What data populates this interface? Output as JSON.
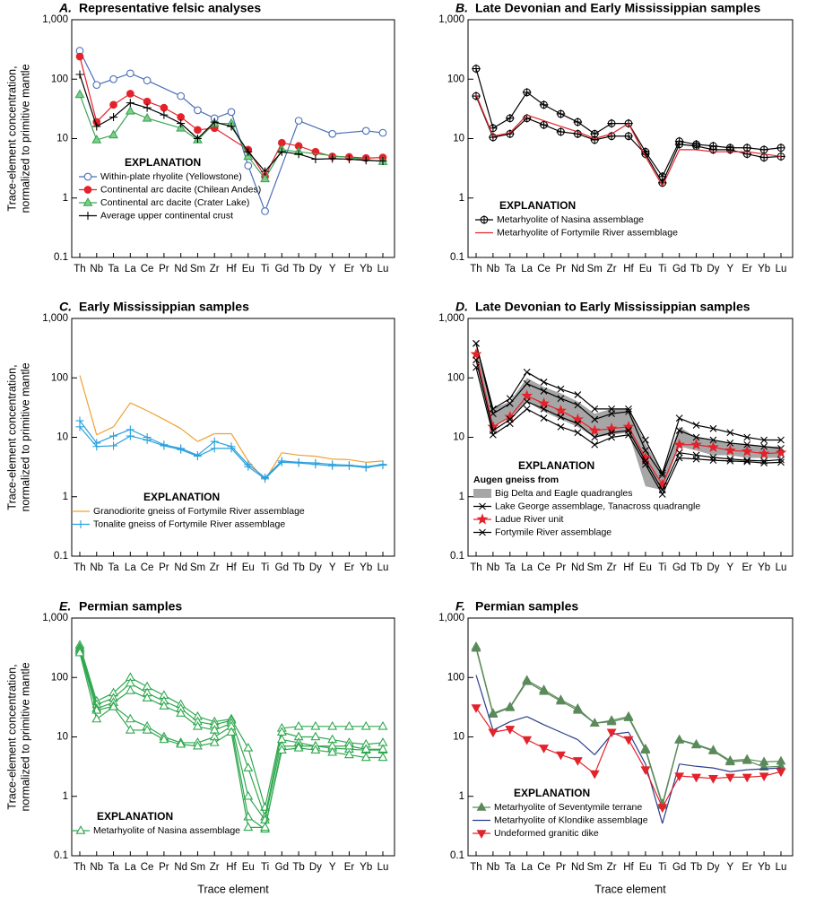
{
  "chart_data": [
    {
      "type": "line",
      "label": "A.",
      "title": "Representative felsic analyses",
      "categories": [
        "Th",
        "Nb",
        "Ta",
        "La",
        "Ce",
        "Pr",
        "Nd",
        "Sm",
        "Zr",
        "Hf",
        "Eu",
        "Ti",
        "Gd",
        "Tb",
        "Dy",
        "Y",
        "Er",
        "Yb",
        "Lu"
      ],
      "ylim": [
        0.1,
        1000
      ],
      "yticks": [
        0.1,
        1,
        10,
        100,
        {
          "value": 1000,
          "label": "1,000"
        }
      ],
      "log_scale": true,
      "y_label": [
        "Trace-element concentration,",
        "normalized to primitive mantle"
      ],
      "legend_title": "EXPLANATION",
      "series": [
        {
          "name": "Within-plate rhyolite (Yellowstone)",
          "color": "#4a6fb8",
          "marker": "circle",
          "marker_fill": "#ffffff",
          "values": [
            300,
            80,
            100,
            125,
            95,
            null,
            52,
            30,
            22,
            28,
            3.5,
            0.6,
            null,
            20,
            null,
            12,
            null,
            13.5,
            12.5
          ]
        },
        {
          "name": "Continental arc dacite (Chilean Andes)",
          "color": "#e3222b",
          "marker": "circle",
          "marker_fill": "#e3222b",
          "values": [
            240,
            19,
            37,
            57,
            42,
            33,
            23,
            14,
            15,
            null,
            6.5,
            2.3,
            8.5,
            7.5,
            6,
            5,
            4.9,
            4.7,
            4.8
          ]
        },
        {
          "name": "Continental arc dacite (Crater Lake)",
          "color": "#3aa655",
          "marker": "triangle",
          "marker_fill": "#7fcf8c",
          "values": [
            55,
            9.5,
            11.5,
            29,
            22,
            null,
            15,
            9.5,
            18,
            18,
            5,
            2.1,
            6.5,
            6,
            null,
            null,
            null,
            null,
            4.1
          ]
        },
        {
          "name": "Average upper continental crust",
          "color": "#000000",
          "marker": "plus",
          "marker_fill": "none",
          "values": [
            120,
            16,
            23,
            40,
            33,
            25,
            18,
            10,
            19,
            16,
            6,
            2.8,
            6,
            5.5,
            4.5,
            4.6,
            4.5,
            4.3,
            4.2
          ]
        }
      ]
    },
    {
      "type": "line",
      "label": "B.",
      "title": "Late Devonian and Early Mississippian samples",
      "categories": [
        "Th",
        "Nb",
        "Ta",
        "La",
        "Ce",
        "Pr",
        "Nd",
        "Sm",
        "Zr",
        "Hf",
        "Eu",
        "Ti",
        "Gd",
        "Tb",
        "Dy",
        "Y",
        "Er",
        "Yb",
        "Lu"
      ],
      "ylim": [
        0.1,
        1000
      ],
      "yticks": [
        0.1,
        1,
        10,
        100,
        {
          "value": 1000,
          "label": "1,000"
        }
      ],
      "log_scale": true,
      "legend_title": "EXPLANATION",
      "series": [
        {
          "name": "Metarhyolite of Nasina assemblage",
          "color": "#000000",
          "marker": "circle-plus",
          "marker_fill": "none",
          "values": [
            150,
            15,
            22,
            60,
            37,
            26,
            19,
            12,
            18,
            18,
            6,
            2.3,
            9,
            8,
            7.5,
            7,
            7,
            6.5,
            7
          ]
        },
        {
          "color": "#000000",
          "marker": "circle-plus",
          "marker_fill": "none",
          "values": [
            52,
            10.5,
            12,
            22,
            17,
            13,
            12,
            9.5,
            11,
            11,
            5.5,
            1.8,
            8,
            7.5,
            6.5,
            6.5,
            5.5,
            4.8,
            5
          ]
        },
        {
          "name": "Metarhyolite of Fortymile River assemblage",
          "color": "#e3222b",
          "marker": "none",
          "values": [
            55,
            11,
            12.5,
            25,
            20,
            16,
            13,
            10,
            12,
            18,
            5,
            1.6,
            6.5,
            6.5,
            6,
            6,
            6,
            5.5,
            5
          ]
        }
      ]
    },
    {
      "type": "line",
      "label": "C.",
      "title": "Early Mississippian samples",
      "categories": [
        "Th",
        "Nb",
        "Ta",
        "La",
        "Ce",
        "Pr",
        "Nd",
        "Sm",
        "Zr",
        "Hf",
        "Eu",
        "Ti",
        "Gd",
        "Tb",
        "Dy",
        "Y",
        "Er",
        "Yb",
        "Lu"
      ],
      "ylim": [
        0.1,
        1000
      ],
      "yticks": [
        0.1,
        1,
        10,
        100,
        {
          "value": 1000,
          "label": "1,000"
        }
      ],
      "log_scale": true,
      "y_label": [
        "Trace-element concentration,",
        "normalized to primitive mantle"
      ],
      "legend_title": "EXPLANATION",
      "series": [
        {
          "name": "Granodiorite gneiss of Fortymile River assemblage",
          "color": "#f0a030",
          "marker": "none",
          "values": [
            110,
            11,
            15,
            38,
            28,
            20,
            14,
            8.5,
            11.5,
            11.5,
            4,
            1.9,
            5.5,
            5,
            4.8,
            4.3,
            4.2,
            3.8,
            4
          ]
        },
        {
          "name": "Tonalite gneiss of Fortymile River assemblage",
          "color": "#2aa0dc",
          "marker": "plus",
          "marker_fill": "none",
          "values": [
            19,
            8,
            10.5,
            13.5,
            10,
            7.5,
            6.5,
            5,
            8.5,
            7,
            3.5,
            2.1,
            4,
            3.8,
            3.7,
            3.5,
            3.4,
            3.2,
            3.5
          ]
        },
        {
          "color": "#2aa0dc",
          "marker": "plus",
          "marker_fill": "none",
          "values": [
            15,
            7,
            7.2,
            10.5,
            9,
            7.2,
            6.2,
            4.8,
            6.5,
            6.5,
            3.2,
            2,
            3.8,
            3.7,
            3.5,
            3.3,
            3.3,
            3.1,
            3.4
          ]
        }
      ]
    },
    {
      "type": "line",
      "label": "D.",
      "title": "Late Devonian to Early Mississippian samples",
      "categories": [
        "Th",
        "Nb",
        "Ta",
        "La",
        "Ce",
        "Pr",
        "Nd",
        "Sm",
        "Zr",
        "Hf",
        "Eu",
        "Ti",
        "Gd",
        "Tb",
        "Dy",
        "Y",
        "Er",
        "Yb",
        "Lu"
      ],
      "ylim": [
        0.1,
        1000
      ],
      "yticks": [
        0.1,
        1,
        10,
        100,
        {
          "value": 1000,
          "label": "1,000"
        }
      ],
      "log_scale": true,
      "legend_title": "EXPLANATION",
      "legend_subtitle": "Augen gneiss from",
      "series": [
        {
          "name": "Big Delta and Eagle quadrangles",
          "kind": "band",
          "color": "#a6a6a6",
          "high": [
            300,
            30,
            40,
            100,
            70,
            55,
            40,
            25,
            30,
            30,
            8,
            2.5,
            15,
            10,
            9,
            8,
            7.5,
            7,
            7
          ],
          "low": [
            200,
            15,
            22,
            40,
            27,
            20,
            15,
            10,
            11,
            12,
            1.5,
            1.3,
            7,
            6,
            5,
            5,
            4.5,
            4.5,
            4.5
          ]
        },
        {
          "name": "Lake George assemblage, Tanacross quadrangle",
          "color": "#000000",
          "marker": "dash-x",
          "marker_fill": "none",
          "values": [
            380,
            30,
            45,
            125,
            85,
            65,
            52,
            30,
            30,
            30,
            9,
            2.5,
            21,
            16,
            14,
            12,
            10,
            9,
            9
          ]
        },
        {
          "color": "#000000",
          "marker": "dash-x",
          "marker_fill": "none",
          "values": [
            380,
            25,
            37,
            80,
            60,
            45,
            35,
            20,
            25,
            27,
            6,
            2.3,
            13,
            10,
            9,
            8,
            7.5,
            7,
            6.5
          ]
        },
        {
          "name": "Ladue River unit",
          "color": "#e3222b",
          "marker": "star",
          "marker_fill": "#e3222b",
          "values": [
            250,
            15,
            22,
            50,
            37,
            28,
            20,
            13,
            14,
            15,
            4.5,
            1.6,
            7.5,
            7.5,
            6.8,
            6,
            5.8,
            5.3,
            5.5
          ]
        },
        {
          "name": "Fortymile River assemblage",
          "color": "#000000",
          "marker": "x",
          "marker_fill": "none",
          "values": [
            200,
            13,
            20,
            40,
            30,
            22,
            17,
            10,
            12,
            13,
            4,
            1.3,
            5.5,
            5,
            4.6,
            4.3,
            4.1,
            4,
            4.2
          ]
        },
        {
          "color": "#000000",
          "marker": "x",
          "marker_fill": "none",
          "values": [
            150,
            11,
            17,
            30,
            21,
            15,
            12,
            7.5,
            10,
            11,
            3.5,
            1.1,
            4.5,
            4.3,
            4.1,
            4,
            3.9,
            3.7,
            3.8
          ]
        }
      ]
    },
    {
      "type": "line",
      "label": "E.",
      "title": "Permian samples",
      "categories": [
        "Th",
        "Nb",
        "Ta",
        "La",
        "Ce",
        "Pr",
        "Nd",
        "Sm",
        "Zr",
        "Hf",
        "Eu",
        "Ti",
        "Gd",
        "Tb",
        "Dy",
        "Y",
        "Er",
        "Yb",
        "Lu"
      ],
      "ylim": [
        0.1,
        1000
      ],
      "yticks": [
        0.1,
        1,
        10,
        100,
        {
          "value": 1000,
          "label": "1,000"
        }
      ],
      "log_scale": true,
      "y_label": [
        "Trace-element concentration,",
        "normalized to primitive mantle"
      ],
      "x_label": "Trace element",
      "legend_title": "EXPLANATION",
      "series": [
        {
          "name": "Metarhyolite of Nasina assemblage",
          "color": "#2fa84f",
          "marker": "triangle",
          "marker_fill": "#ffffff",
          "values": [
            350,
            40,
            55,
            100,
            70,
            50,
            35,
            22,
            18,
            20,
            6.5,
            0.65,
            14,
            15,
            15,
            15,
            15,
            15,
            15
          ]
        },
        {
          "color": "#2fa84f",
          "marker": "triangle",
          "marker_fill": "#ffffff",
          "values": [
            320,
            35,
            45,
            80,
            55,
            40,
            30,
            18,
            16,
            19,
            3,
            0.45,
            12,
            10,
            10,
            9,
            8,
            7.5,
            8
          ]
        },
        {
          "color": "#2fa84f",
          "marker": "triangle",
          "marker_fill": "#ffffff",
          "values": [
            300,
            30,
            38,
            60,
            45,
            33,
            25,
            15,
            13,
            17,
            1,
            0.4,
            9,
            8,
            7,
            6.5,
            6.2,
            6,
            6
          ]
        },
        {
          "color": "#2fa84f",
          "marker": "triangle",
          "marker_fill": "#ffffff",
          "values": [
            280,
            28,
            33,
            20,
            15,
            10,
            8,
            8,
            10,
            15,
            0.45,
            0.28,
            7,
            7,
            7,
            7,
            7,
            6.2,
            6.2
          ]
        },
        {
          "color": "#2fa84f",
          "marker": "triangle",
          "marker_fill": "#ffffff",
          "values": [
            260,
            20,
            32,
            13,
            13,
            9,
            7.5,
            7,
            8,
            12,
            0.3,
            0.3,
            6,
            6.5,
            6,
            5.5,
            5,
            4.5,
            4.5
          ]
        }
      ]
    },
    {
      "type": "line",
      "label": "F.",
      "title": "Permian samples",
      "categories": [
        "Th",
        "Nb",
        "Ta",
        "La",
        "Ce",
        "Pr",
        "Nd",
        "Sm",
        "Zr",
        "Hf",
        "Eu",
        "Ti",
        "Gd",
        "Tb",
        "Dy",
        "Y",
        "Er",
        "Yb",
        "Lu"
      ],
      "ylim": [
        0.1,
        1000
      ],
      "yticks": [
        0.1,
        1,
        10,
        100,
        {
          "value": 1000,
          "label": "1,000"
        }
      ],
      "log_scale": true,
      "x_label": "Trace element",
      "legend_title": "EXPLANATION",
      "series": [
        {
          "name": "Metarhyolite of Seventymile terrane",
          "color": "#5a8a5a",
          "marker": "triangle",
          "marker_fill": "#5a8a5a",
          "values": [
            330,
            25,
            32,
            90,
            62,
            42,
            30,
            17,
            19,
            22,
            6.3,
            0.75,
            9,
            7.5,
            6,
            4,
            4.2,
            3.8,
            3.9
          ]
        },
        {
          "color": "#5a8a5a",
          "marker": "triangle",
          "marker_fill": "#5a8a5a",
          "values": [
            310,
            24,
            31,
            85,
            58,
            40,
            28,
            17,
            18,
            21,
            6,
            0.7,
            8.8,
            7.3,
            5.8,
            3.8,
            4,
            3.1,
            3.2
          ]
        },
        {
          "name": "Metarhyolite of Klondike assemblage",
          "color": "#2b3f8c",
          "marker": "none",
          "values": [
            110,
            13,
            18,
            22,
            16,
            12,
            9,
            5,
            11,
            12,
            3.5,
            0.35,
            3.5,
            3.2,
            3,
            2.6,
            2.8,
            2.9,
            3
          ]
        },
        {
          "name": "Undeformed granitic dike",
          "color": "#e3222b",
          "marker": "triangle-down",
          "marker_fill": "#e3222b",
          "values": [
            31,
            12,
            13.5,
            9,
            6.5,
            5,
            4,
            2.4,
            12,
            9,
            2.8,
            0.65,
            2.2,
            2.1,
            2,
            2.1,
            2.1,
            2.2,
            2.6
          ]
        }
      ]
    }
  ]
}
